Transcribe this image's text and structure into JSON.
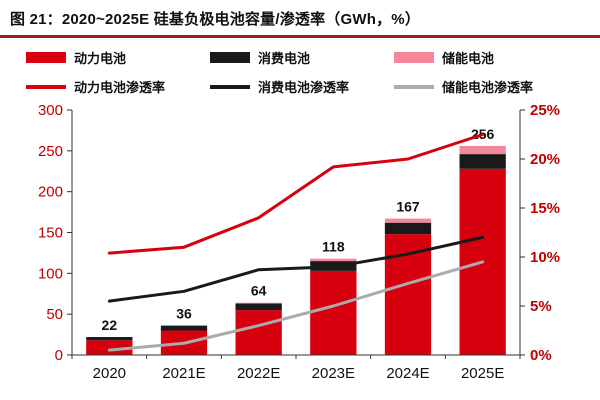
{
  "page": {
    "title": "图 21：2020~2025E 硅基负极电池容量/渗透率（GWh，%）"
  },
  "colors": {
    "accent_rule": "#9C1D1F",
    "power_red": "#D7000F",
    "consumer_black": "#1A1A1A",
    "storage_pink": "#F4879B",
    "storage_gray": "#ABABAB",
    "axis_label_red": "#C00000",
    "axis_line": "#333333"
  },
  "legend": {
    "items": [
      {
        "label": "动力电池",
        "type": "bar",
        "color": "#D7000F"
      },
      {
        "label": "消费电池",
        "type": "bar",
        "color": "#1A1A1A"
      },
      {
        "label": "储能电池",
        "type": "bar",
        "color": "#F4879B"
      },
      {
        "label": "动力电池渗透率",
        "type": "line",
        "color": "#D7000F"
      },
      {
        "label": "消费电池渗透率",
        "type": "line",
        "color": "#1A1A1A"
      },
      {
        "label": "储能电池渗透率",
        "type": "line",
        "color": "#ABABAB"
      }
    ]
  },
  "chart_data": {
    "type": "combo-stacked-bar-line",
    "title": "2020~2025E 硅基负极电池容量/渗透率（GWh，%）",
    "categories": [
      "2020",
      "2021E",
      "2022E",
      "2023E",
      "2024E",
      "2025E"
    ],
    "bar_series": [
      {
        "name": "动力电池",
        "color": "#D7000F",
        "values": [
          18,
          30,
          55,
          103,
          148,
          228
        ]
      },
      {
        "name": "消费电池",
        "color": "#1A1A1A",
        "values": [
          4,
          6,
          8,
          12,
          14,
          18
        ]
      },
      {
        "name": "储能电池",
        "color": "#F4879B",
        "values": [
          0,
          0,
          1,
          3,
          5,
          10
        ]
      }
    ],
    "bar_totals": [
      22,
      36,
      64,
      118,
      167,
      256
    ],
    "line_series": [
      {
        "name": "动力电池渗透率",
        "color": "#D7000F",
        "values": [
          10.4,
          11.0,
          14.0,
          19.2,
          20.0,
          22.5
        ]
      },
      {
        "name": "消费电池渗透率",
        "color": "#1A1A1A",
        "values": [
          5.5,
          6.5,
          8.7,
          9.0,
          10.3,
          12.0
        ]
      },
      {
        "name": "储能电池渗透率",
        "color": "#ABABAB",
        "values": [
          0.5,
          1.2,
          3.0,
          5.0,
          7.3,
          9.5
        ]
      }
    ],
    "left_axis": {
      "min": 0,
      "max": 300,
      "step": 50
    },
    "right_axis": {
      "min": 0,
      "max": 25,
      "step": 5,
      "suffix": "%"
    },
    "legend_position": "top",
    "grid": false
  }
}
